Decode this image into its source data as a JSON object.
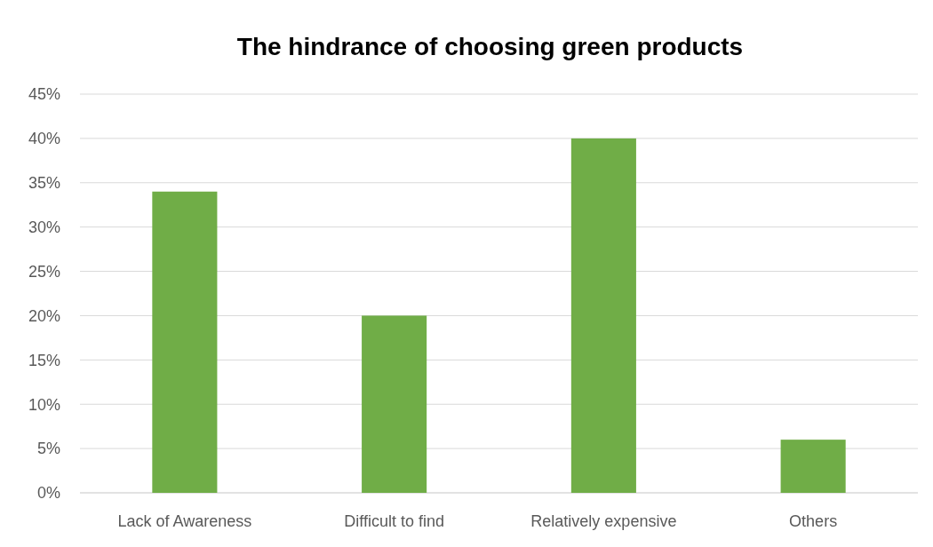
{
  "chart_data": {
    "type": "bar",
    "title": "The hindrance of choosing green products",
    "categories": [
      "Lack of Awareness",
      "Difficult to find",
      "Relatively expensive",
      "Others"
    ],
    "values": [
      34,
      20,
      40,
      6
    ],
    "color": "#70ad47",
    "ylim": [
      0,
      45
    ],
    "yticks": [
      {
        "value": 0,
        "label": "0%"
      },
      {
        "value": 5,
        "label": "5%"
      },
      {
        "value": 10,
        "label": "10%"
      },
      {
        "value": 15,
        "label": "15%"
      },
      {
        "value": 20,
        "label": "20%"
      },
      {
        "value": 25,
        "label": "25%"
      },
      {
        "value": 30,
        "label": "30%"
      },
      {
        "value": 35,
        "label": "35%"
      },
      {
        "value": 40,
        "label": "40%"
      },
      {
        "value": 45,
        "label": "45%"
      }
    ],
    "grid": "y"
  }
}
